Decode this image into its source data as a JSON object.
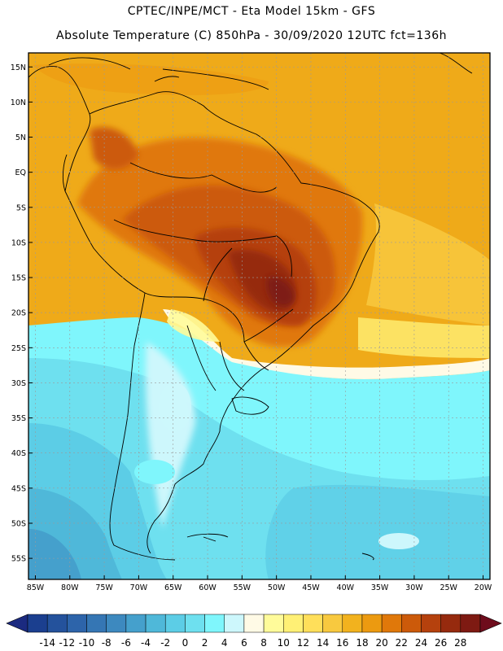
{
  "header": {
    "title_line1": "CPTEC/INPE/MCT -  Eta Model 15km - GFS",
    "title_line2": "Absolute Temperature (C) 850hPa - 30/09/2020 12UTC fct=136h"
  },
  "map": {
    "lat_labels": [
      "15N",
      "10N",
      "5N",
      "EQ",
      "5S",
      "10S",
      "15S",
      "20S",
      "25S",
      "30S",
      "35S",
      "40S",
      "45S",
      "50S",
      "55S"
    ],
    "lat_values": [
      15,
      10,
      5,
      0,
      -5,
      -10,
      -15,
      -20,
      -25,
      -30,
      -35,
      -40,
      -45,
      -50,
      -55
    ],
    "lon_labels": [
      "85W",
      "80W",
      "75W",
      "70W",
      "65W",
      "60W",
      "55W",
      "50W",
      "45W",
      "40W",
      "35W",
      "30W",
      "25W",
      "20W"
    ],
    "lon_values": [
      -85,
      -80,
      -75,
      -70,
      -65,
      -60,
      -55,
      -50,
      -45,
      -40,
      -35,
      -30,
      -25,
      -20
    ],
    "lat_range": [
      -58,
      17
    ],
    "lon_range": [
      -86,
      -19
    ]
  },
  "colorbar": {
    "levels": [
      "-14",
      "-12",
      "-10",
      "-8",
      "-6",
      "-4",
      "-2",
      "0",
      "2",
      "4",
      "6",
      "8",
      "10",
      "12",
      "14",
      "16",
      "18",
      "20",
      "22",
      "24",
      "26",
      "28"
    ],
    "colors": [
      "#1b3f8f",
      "#24529c",
      "#2d64aa",
      "#3576b4",
      "#3d89bf",
      "#45a0cc",
      "#4fb8d9",
      "#5ccde6",
      "#6ee0ef",
      "#7ff6fc",
      "#cdf7fc",
      "#fffae6",
      "#fffb9a",
      "#fff075",
      "#ffdf5a",
      "#f8c93f",
      "#f2b21e",
      "#ec9a10",
      "#e0780a",
      "#cc5a0a",
      "#b5410d",
      "#962a0e",
      "#7e1a12"
    ],
    "left_cap_color": "#1b2a80",
    "right_cap_color": "#6e0c1c"
  }
}
